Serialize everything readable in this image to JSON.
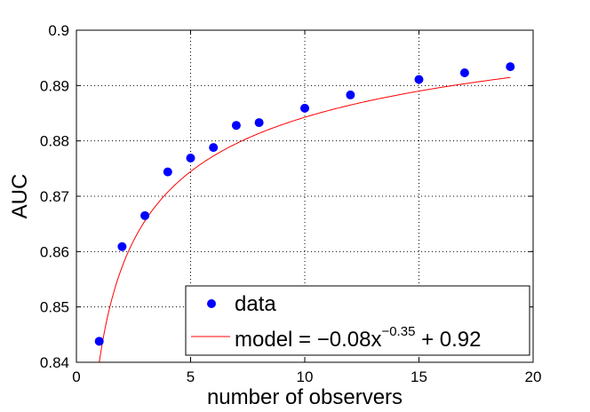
{
  "chart_data": {
    "type": "scatter",
    "title": "",
    "xlabel": "number of observers",
    "ylabel": "AUC",
    "xlim": [
      0,
      20
    ],
    "ylim": [
      0.84,
      0.9
    ],
    "grid": true,
    "legend_position": "bottom-right",
    "x_ticks": [
      0,
      5,
      10,
      15,
      20
    ],
    "x_tick_labels": [
      "0",
      "5",
      "10",
      "15",
      "20"
    ],
    "y_ticks": [
      0.84,
      0.85,
      0.86,
      0.87,
      0.88,
      0.89,
      0.9
    ],
    "y_tick_labels": [
      "0.84",
      "0.85",
      "0.86",
      "0.87",
      "0.88",
      "0.89",
      "0.9"
    ],
    "series": [
      {
        "name": "data",
        "kind": "points",
        "color": "#0000ff",
        "x": [
          1,
          2,
          3,
          4,
          5,
          6,
          7,
          8,
          10,
          12,
          15,
          17,
          19
        ],
        "y": [
          0.8438,
          0.8609,
          0.8665,
          0.8744,
          0.8769,
          0.8788,
          0.8828,
          0.8833,
          0.8859,
          0.8883,
          0.8911,
          0.8923,
          0.8934
        ]
      },
      {
        "name": "model",
        "kind": "line",
        "color": "#ff0000",
        "formula": {
          "a": -0.08,
          "b": -0.35,
          "c": 0.92
        },
        "x_range": [
          1,
          19
        ]
      }
    ],
    "legend": {
      "data_label": "data",
      "model_prefix": "model = −0.08x",
      "model_exponent": "−0.35",
      "model_suffix": " + 0.92"
    }
  }
}
